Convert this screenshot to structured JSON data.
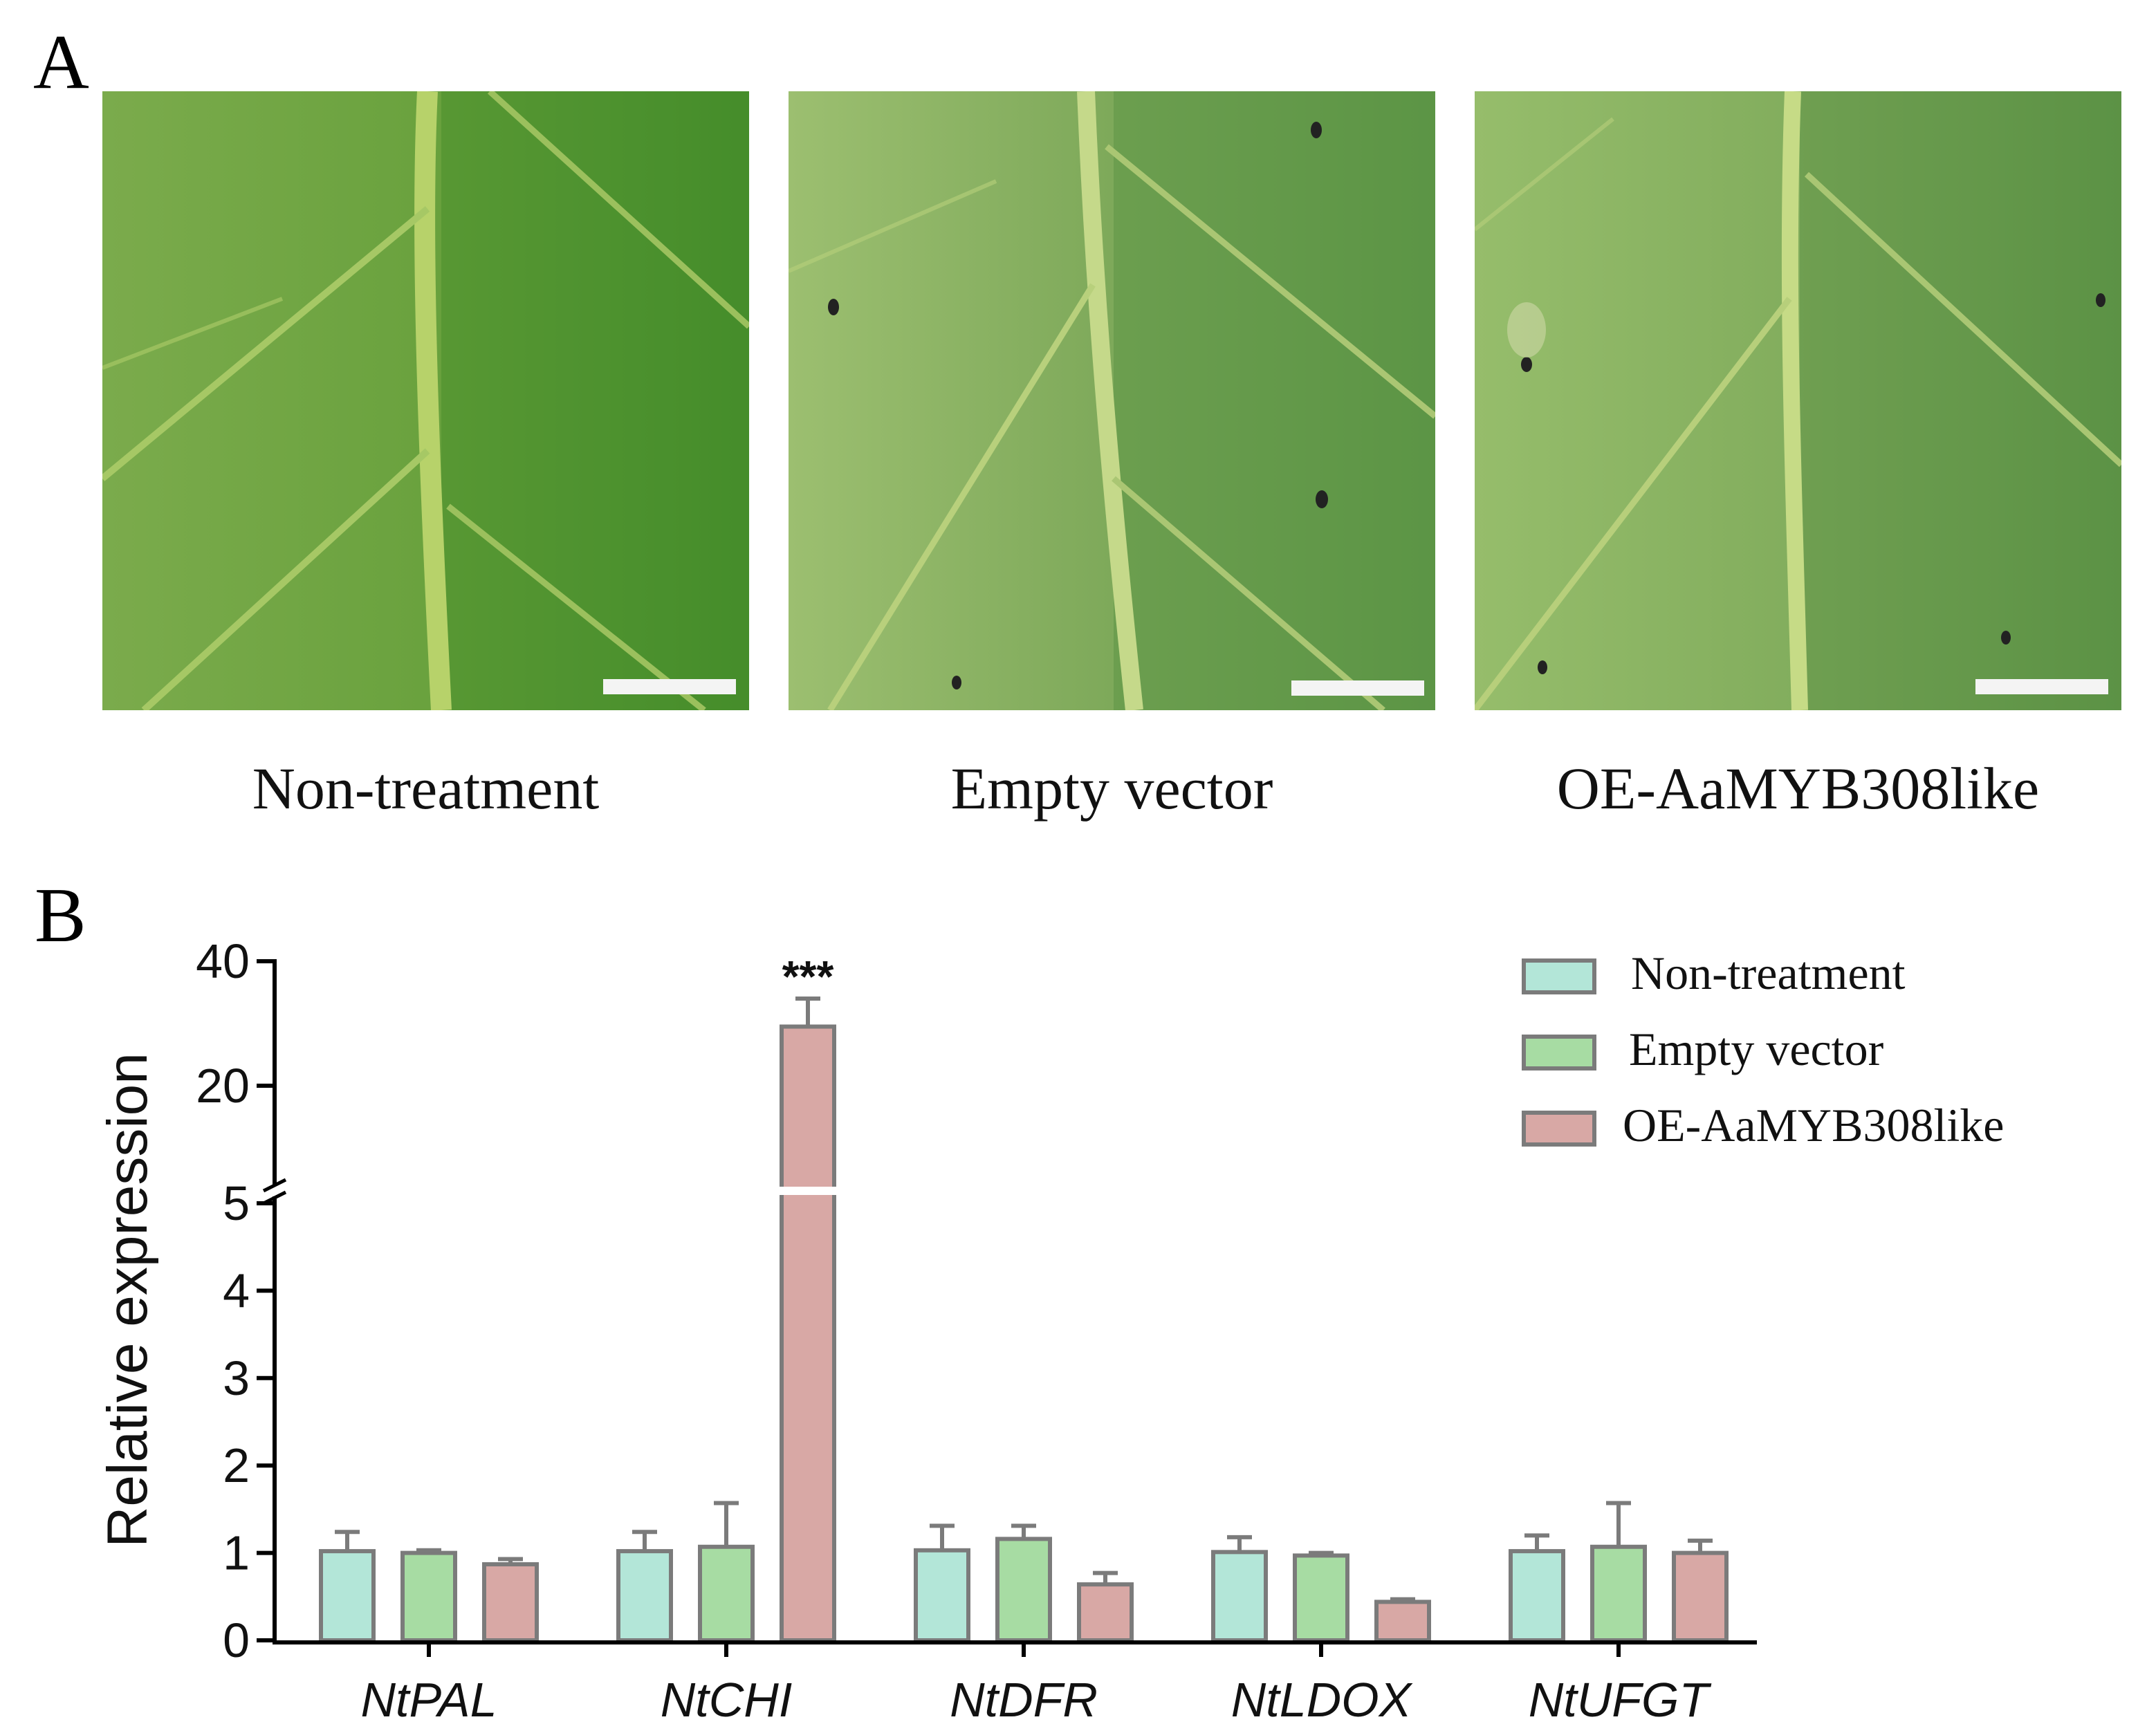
{
  "panel_a": {
    "letter": "A",
    "photos": [
      {
        "caption": "Non-treatment",
        "scale_bar": true
      },
      {
        "caption": "Empty vector",
        "scale_bar": true
      },
      {
        "caption": "OE-AaMYB308like",
        "scale_bar": true
      }
    ]
  },
  "panel_b": {
    "letter": "B"
  },
  "chart_data": {
    "type": "bar",
    "title": "",
    "xlabel": "",
    "ylabel": "Relative expression",
    "categories": [
      "NtPAL",
      "NtCHI",
      "NtDFR",
      "NtLDOX",
      "NtUFGT"
    ],
    "series": [
      {
        "name": "Non-treatment",
        "color": "#b3e6d8",
        "values": [
          1.02,
          1.02,
          1.03,
          1.01,
          1.02
        ],
        "error": [
          0.22,
          0.22,
          0.28,
          0.17,
          0.18
        ]
      },
      {
        "name": "Empty vector",
        "color": "#a7dca3",
        "values": [
          1.0,
          1.07,
          1.16,
          0.97,
          1.07
        ],
        "error": [
          0.03,
          0.5,
          0.15,
          0.03,
          0.5
        ]
      },
      {
        "name": "OE-AaMYB308like",
        "color": "#d8a8a5",
        "values": [
          0.87,
          29.5,
          0.64,
          0.44,
          1.0
        ],
        "error": [
          0.06,
          4.5,
          0.13,
          0.03,
          0.14
        ]
      }
    ],
    "axis_break": {
      "lower_range": [
        0,
        5
      ],
      "upper_range": [
        5,
        40
      ]
    },
    "y_ticks_lower": [
      "0",
      "1",
      "2",
      "3",
      "4",
      "5"
    ],
    "y_ticks_upper": [
      "20",
      "40"
    ],
    "annotations": [
      {
        "category": "NtCHI",
        "series": "OE-AaMYB308like",
        "text": "***"
      }
    ],
    "legend_position": "top-right",
    "grid": false
  }
}
